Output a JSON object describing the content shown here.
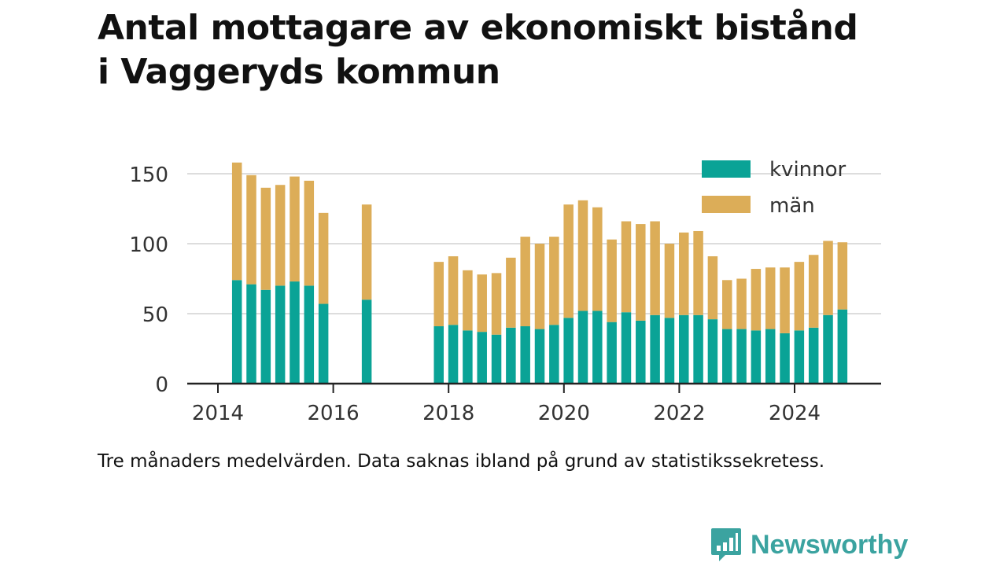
{
  "title_lines": [
    "Antal mottagare av ekonomiskt bistånd",
    "i Vaggeryds kommun"
  ],
  "note": "Tre månaders medelvärden. Data saknas ibland på grund av statistikssekretess.",
  "brand": {
    "name": "Newsworthy",
    "logo_icon": "newsworthy-logo-icon"
  },
  "colors": {
    "kvinnor": "#0aa396",
    "man": "#dcad58",
    "grid": "#dddddd",
    "axis": "#222222",
    "text": "#333333"
  },
  "chart_data": {
    "type": "bar",
    "stacked": true,
    "title": "Antal mottagare av ekonomiskt bistånd i Vaggeryds kommun",
    "xlabel": "",
    "ylabel": "",
    "ylim": [
      0,
      160
    ],
    "xlim": [
      2013.6,
      2025.6
    ],
    "grid": true,
    "legend": "top-right",
    "x_ticks": [
      2014,
      2016,
      2018,
      2020,
      2022,
      2024
    ],
    "y_ticks": [
      0,
      50,
      100,
      150
    ],
    "x": [
      2014.33,
      2014.58,
      2014.83,
      2015.08,
      2015.33,
      2015.58,
      2015.83,
      2016.58,
      2017.83,
      2018.08,
      2018.33,
      2018.58,
      2018.83,
      2019.08,
      2019.33,
      2019.58,
      2019.83,
      2020.08,
      2020.33,
      2020.58,
      2020.83,
      2021.08,
      2021.33,
      2021.58,
      2021.83,
      2022.08,
      2022.33,
      2022.58,
      2022.83,
      2023.08,
      2023.33,
      2023.58,
      2023.83,
      2024.08,
      2024.33,
      2024.58,
      2024.83
    ],
    "series": [
      {
        "name": "kvinnor",
        "color": "#0aa396",
        "values": [
          74,
          71,
          67,
          70,
          73,
          70,
          57,
          60,
          41,
          42,
          38,
          37,
          35,
          40,
          41,
          39,
          42,
          47,
          52,
          52,
          44,
          51,
          45,
          49,
          47,
          49,
          49,
          46,
          39,
          39,
          38,
          39,
          36,
          38,
          40,
          49,
          53
        ]
      },
      {
        "name": "män",
        "color": "#dcad58",
        "values": [
          84,
          78,
          73,
          72,
          75,
          75,
          65,
          68,
          46,
          49,
          43,
          41,
          44,
          50,
          64,
          61,
          63,
          81,
          79,
          74,
          59,
          65,
          69,
          67,
          53,
          59,
          60,
          45,
          35,
          36,
          44,
          44,
          47,
          49,
          52,
          53,
          48
        ]
      }
    ]
  }
}
